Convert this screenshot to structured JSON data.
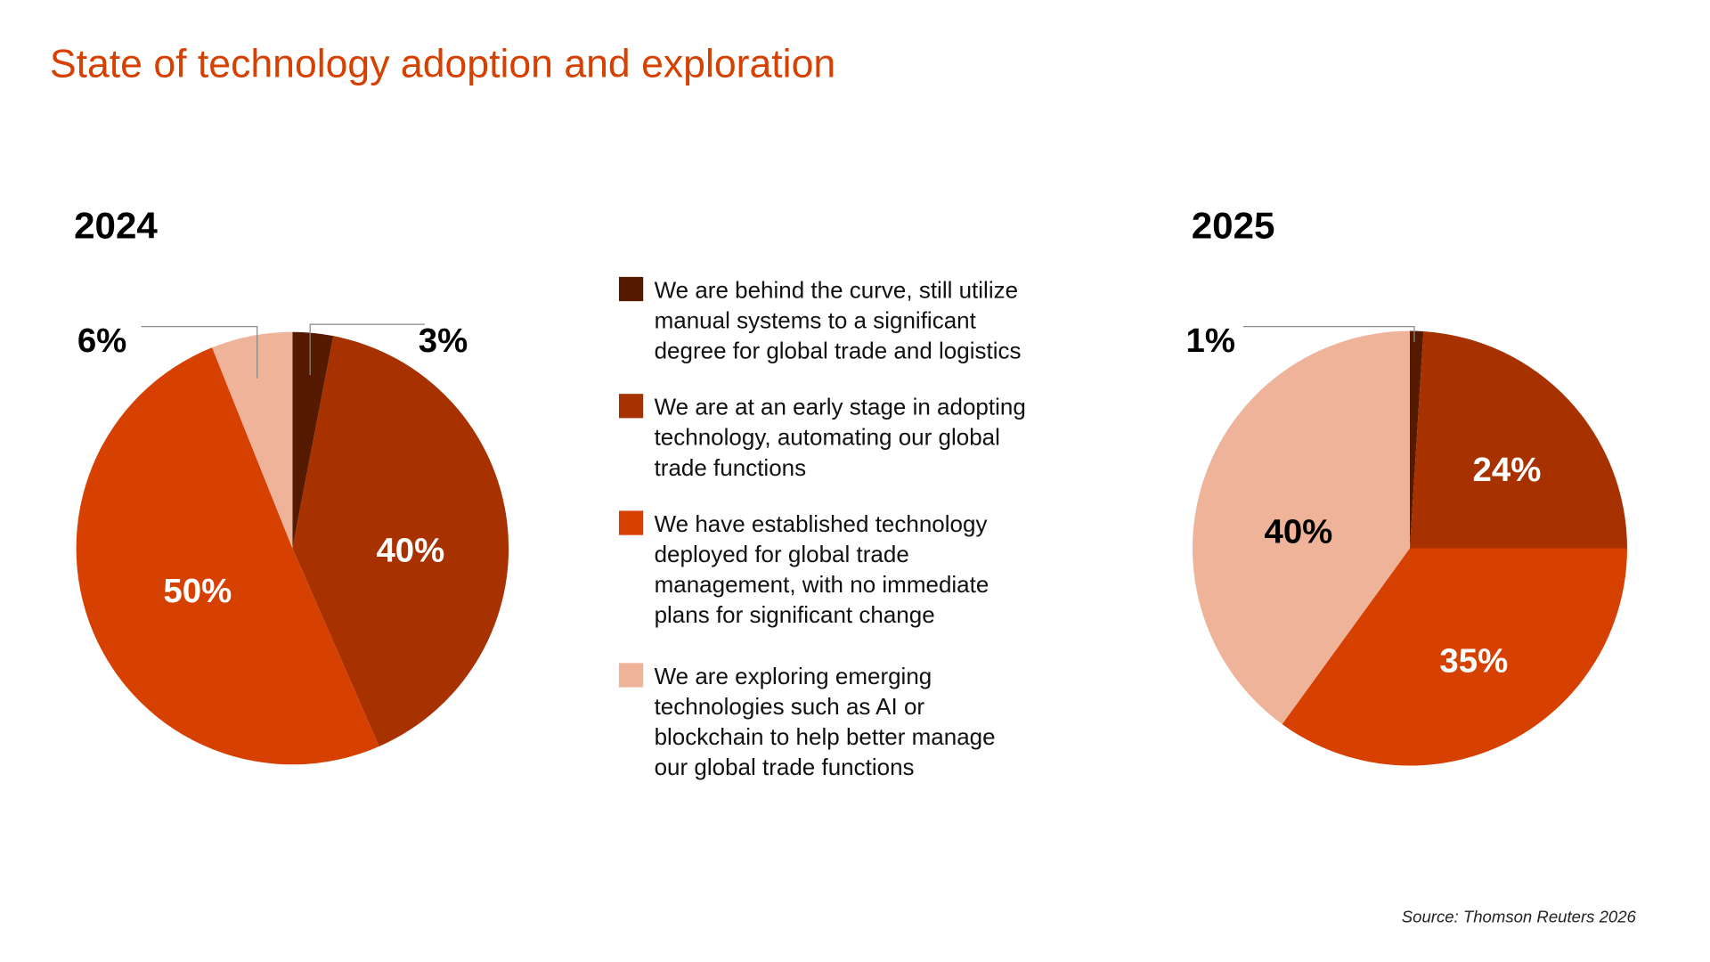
{
  "chart_data": [
    {
      "type": "pie",
      "title": "2024",
      "categories": [
        "We are behind the curve, still utilize manual systems to a significant degree for global trade and logistics",
        "We are at an early stage in adopting technology, automating our global trade functions",
        "We have established technology deployed for global trade management, with no immediate plans for significant change",
        "We are exploring emerging technologies such as AI or blockchain to help better manage our global trade functions"
      ],
      "values": [
        3,
        40,
        50,
        6
      ],
      "labels": [
        "3%",
        "40%",
        "50%",
        "6%"
      ]
    },
    {
      "type": "pie",
      "title": "2025",
      "categories": [
        "We are behind the curve, still utilize manual systems to a significant degree for global trade and logistics",
        "We are at an early stage in adopting technology, automating our global trade functions",
        "We have established technology deployed for global trade management, with no immediate plans for significant change",
        "We are exploring emerging technologies such as AI or blockchain to help better manage our global trade functions"
      ],
      "values": [
        1,
        24,
        35,
        40
      ],
      "labels": [
        "1%",
        "24%",
        "35%",
        "40%"
      ]
    }
  ],
  "title": "State of technology adoption and exploration",
  "colors": [
    "#561a00",
    "#a83100",
    "#d64000",
    "#efb39a"
  ],
  "label_colors_2024": [
    "#000",
    "#fff",
    "#fff",
    "#000"
  ],
  "label_colors_2025": [
    "#000",
    "#fff",
    "#fff",
    "#000"
  ],
  "legend": [
    [
      "We are behind the curve, still utilize",
      "manual systems to a significant",
      "degree for global trade and logistics"
    ],
    [
      "We are at an early stage in adopting",
      "technology, automating our global",
      "trade functions"
    ],
    [
      "We have established technology",
      "deployed for global trade",
      "management, with no immediate",
      "plans for significant change"
    ],
    [
      "We are exploring emerging",
      "technologies such as AI or",
      "blockchain to help better manage",
      "our global trade functions"
    ]
  ],
  "source": "Source: Thomson Reuters 2026"
}
